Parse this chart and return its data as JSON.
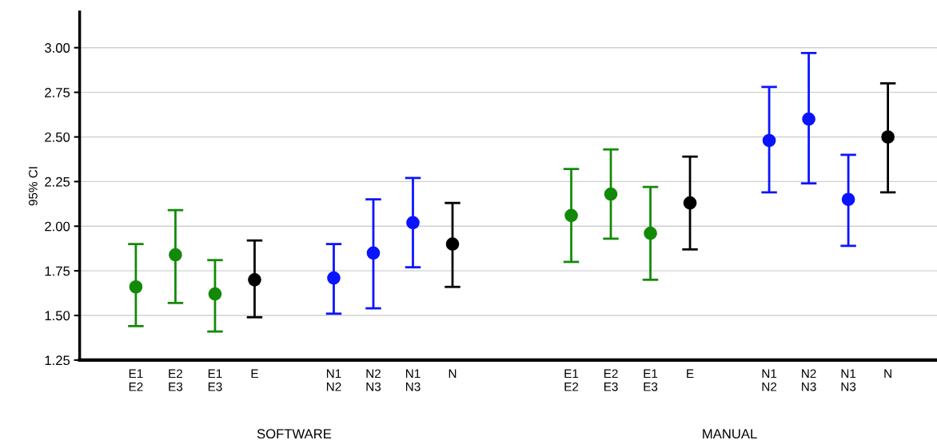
{
  "chart_data": {
    "type": "scatter",
    "ylabel": "95% CI",
    "categories": [
      "E1\nE2",
      "E2\nE3",
      "E1\nE3",
      "E",
      null,
      "N1\nN2",
      "N2\nN3",
      "N1\nN3",
      "N",
      null,
      null,
      "E1\nE2",
      "E2\nE3",
      "E1\nE3",
      "E",
      null,
      "N1\nN2",
      "N2\nN3",
      "N1\nN3",
      "N"
    ],
    "series": [
      {
        "values": [
          1.66,
          1.84,
          1.62,
          1.7,
          null,
          1.71,
          1.85,
          2.02,
          1.9,
          null,
          null,
          2.06,
          2.18,
          1.96,
          2.13,
          null,
          2.48,
          2.6,
          2.15,
          2.5
        ],
        "errors": [
          [
            1.44,
            1.9
          ],
          [
            1.57,
            2.09
          ],
          [
            1.41,
            1.81
          ],
          [
            1.49,
            1.92
          ],
          null,
          [
            1.51,
            1.9
          ],
          [
            1.54,
            2.15
          ],
          [
            1.77,
            2.27
          ],
          [
            1.66,
            2.13
          ],
          null,
          null,
          [
            1.8,
            2.32
          ],
          [
            1.93,
            2.43
          ],
          [
            1.7,
            2.22
          ],
          [
            1.87,
            2.39
          ],
          null,
          [
            2.19,
            2.78
          ],
          [
            2.24,
            2.97
          ],
          [
            1.89,
            2.4
          ],
          [
            2.19,
            2.8
          ]
        ],
        "colors": [
          "#138a07",
          "#138a07",
          "#138a07",
          "#000000",
          null,
          "#0a14ff",
          "#0a14ff",
          "#0a14ff",
          "#000000",
          null,
          null,
          "#138a07",
          "#138a07",
          "#138a07",
          "#000000",
          null,
          "#0a14ff",
          "#0a14ff",
          "#0a14ff",
          "#000000"
        ]
      }
    ],
    "ylim": [
      1.25,
      3.2
    ],
    "yticks": [
      {
        "value": 1.25,
        "label": "1.25"
      },
      {
        "value": 1.5,
        "label": "1.50"
      },
      {
        "value": 1.75,
        "label": "1.75"
      },
      {
        "value": 2.0,
        "label": "2.00"
      },
      {
        "value": 2.25,
        "label": "2.25"
      },
      {
        "value": 2.5,
        "label": "2.50"
      },
      {
        "value": 2.75,
        "label": "2.75"
      },
      {
        "value": 3.0,
        "label": "3.00"
      }
    ],
    "grid": "y",
    "marker": "circle",
    "annotations": [
      "SOFTWARE",
      "MANUAL"
    ]
  }
}
